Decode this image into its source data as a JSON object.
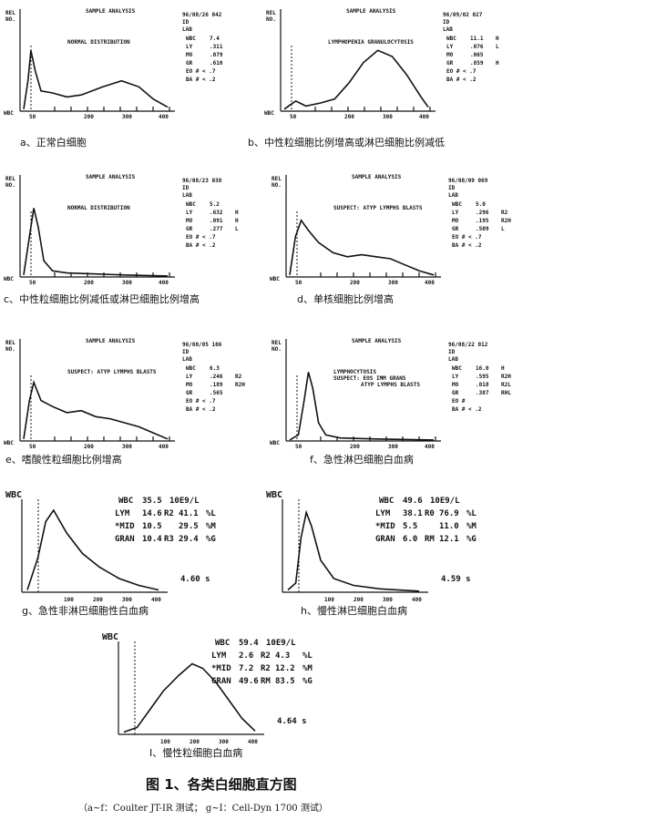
{
  "panels_a_f": [
    {
      "id": "a",
      "header": "SAMPLE ANALYSIS",
      "title": "NORMAL DISTRIBUTION",
      "date": "96/08/26 042",
      "rows": [
        [
          "WBC",
          "7.4",
          ""
        ],
        [
          "LY",
          ".311",
          ""
        ],
        [
          "MO",
          ".079",
          ""
        ],
        [
          "GR",
          ".610",
          ""
        ],
        [
          "EO # < .7",
          "",
          " "
        ],
        [
          "BA # < .2",
          "",
          " "
        ]
      ],
      "caption": "a、正常白细胞",
      "curve": [
        [
          0,
          2
        ],
        [
          0.03,
          30
        ],
        [
          0.05,
          60
        ],
        [
          0.08,
          40
        ],
        [
          0.12,
          20
        ],
        [
          0.2,
          18
        ],
        [
          0.3,
          14
        ],
        [
          0.4,
          16
        ],
        [
          0.55,
          24
        ],
        [
          0.68,
          30
        ],
        [
          0.8,
          24
        ],
        [
          0.9,
          12
        ],
        [
          1,
          4
        ]
      ]
    },
    {
      "id": "b",
      "header": "SAMPLE ANALYSIS",
      "title": "LYMPHOPENIA GRANULOCYTOSIS",
      "date": "96/09/02 027",
      "rows": [
        [
          "WBC",
          "11.1",
          "H"
        ],
        [
          "LY",
          ".076",
          "L"
        ],
        [
          "MO",
          ".065",
          ""
        ],
        [
          "GR",
          ".859",
          "H"
        ],
        [
          "EO # < .7",
          "",
          ""
        ],
        [
          "BA # < .2",
          "",
          ""
        ]
      ],
      "caption": "b、中性粒细胞比例增高或淋巴细胞比例减低",
      "curve": [
        [
          0,
          2
        ],
        [
          0.04,
          6
        ],
        [
          0.08,
          10
        ],
        [
          0.15,
          5
        ],
        [
          0.25,
          8
        ],
        [
          0.35,
          12
        ],
        [
          0.45,
          28
        ],
        [
          0.55,
          48
        ],
        [
          0.65,
          60
        ],
        [
          0.75,
          54
        ],
        [
          0.85,
          36
        ],
        [
          0.95,
          14
        ],
        [
          1,
          4
        ]
      ]
    },
    {
      "id": "c",
      "header": "SAMPLE ANALYSIS",
      "title": "NORMAL DISTRIBUTION",
      "date": "96/08/23 038",
      "rows": [
        [
          "WBC",
          "5.2",
          ""
        ],
        [
          "LY",
          ".632",
          "H"
        ],
        [
          "MO",
          ".091",
          "H"
        ],
        [
          "GR",
          ".277",
          "L"
        ],
        [
          "EO # < .7",
          "",
          ""
        ],
        [
          "BA # < .2",
          "",
          ""
        ]
      ],
      "caption": "c、中性粒细胞比例减低或淋巴细胞比例增高",
      "curve": [
        [
          0,
          2
        ],
        [
          0.04,
          40
        ],
        [
          0.07,
          68
        ],
        [
          0.1,
          50
        ],
        [
          0.14,
          16
        ],
        [
          0.2,
          6
        ],
        [
          0.3,
          4
        ],
        [
          0.5,
          3
        ],
        [
          0.7,
          2
        ],
        [
          1,
          1
        ]
      ]
    },
    {
      "id": "d",
      "header": "SAMPLE ANALYSIS",
      "title": "SUSPECT: ATYP LYMPHS BLASTS",
      "date": "96/08/09 069",
      "rows": [
        [
          "WBC",
          "5.0",
          ""
        ],
        [
          "LY",
          ".296",
          "R2"
        ],
        [
          "MO",
          ".195",
          "R2H"
        ],
        [
          "GR",
          ".509",
          "L"
        ],
        [
          "EO # < .7",
          "",
          ""
        ],
        [
          "BA # < .2",
          "",
          ""
        ]
      ],
      "caption": "d、单核细胞比例增高",
      "curve": [
        [
          0,
          2
        ],
        [
          0.04,
          40
        ],
        [
          0.08,
          56
        ],
        [
          0.13,
          46
        ],
        [
          0.2,
          34
        ],
        [
          0.3,
          24
        ],
        [
          0.4,
          20
        ],
        [
          0.5,
          22
        ],
        [
          0.6,
          20
        ],
        [
          0.7,
          18
        ],
        [
          0.8,
          12
        ],
        [
          0.9,
          6
        ],
        [
          1,
          2
        ]
      ]
    },
    {
      "id": "e",
      "header": "SAMPLE ANALYSIS",
      "title": "SUSPECT: ATYP LYMPHS BLASTS",
      "date": "96/08/05 106",
      "rows": [
        [
          "WBC",
          "6.3",
          ""
        ],
        [
          "LY",
          ".246",
          "R2"
        ],
        [
          "MO",
          ".189",
          "R2H"
        ],
        [
          "GR",
          ".565",
          ""
        ],
        [
          "EO # < .7",
          "",
          ""
        ],
        [
          "BA # < .2",
          "",
          ""
        ]
      ],
      "caption": "e、嗜酸性粒细胞比例增高",
      "curve": [
        [
          0,
          2
        ],
        [
          0.04,
          40
        ],
        [
          0.07,
          58
        ],
        [
          0.12,
          40
        ],
        [
          0.2,
          34
        ],
        [
          0.3,
          28
        ],
        [
          0.4,
          30
        ],
        [
          0.5,
          24
        ],
        [
          0.6,
          22
        ],
        [
          0.7,
          18
        ],
        [
          0.8,
          14
        ],
        [
          0.9,
          8
        ],
        [
          1,
          2
        ]
      ]
    },
    {
      "id": "f",
      "header": "SAMPLE ANALYSIS",
      "title": "LYMPHOCYTOSIS",
      "title2": "SUSPECT: EOS IMM GRANS",
      "title3": "ATYP LYMPHS BLASTS",
      "date": "96/08/22 012",
      "rows": [
        [
          "WBC",
          "16.0",
          "H"
        ],
        [
          "LY",
          ".595",
          "R2H"
        ],
        [
          "MO",
          ".018",
          "R2L"
        ],
        [
          "GR",
          ".387",
          "RHL"
        ],
        [
          "EO #",
          "",
          ""
        ],
        [
          "BA # < .2",
          "",
          ""
        ]
      ],
      "caption": "f、急性淋巴细胞白血病",
      "curve": [
        [
          0,
          1
        ],
        [
          0.06,
          6
        ],
        [
          0.1,
          40
        ],
        [
          0.13,
          68
        ],
        [
          0.16,
          52
        ],
        [
          0.2,
          18
        ],
        [
          0.25,
          6
        ],
        [
          0.35,
          3
        ],
        [
          0.6,
          2
        ],
        [
          1,
          1
        ]
      ]
    }
  ],
  "panels_g_i": [
    {
      "id": "g",
      "label": "WBC",
      "wbc": "35.5",
      "unit": "10E9/L",
      "rows": [
        [
          "LYM",
          "14.6",
          "R2",
          "41.1",
          "%L"
        ],
        [
          "*MID",
          "10.5",
          "",
          "29.5",
          "%M"
        ],
        [
          "GRAN",
          "10.4",
          "R3",
          "29.4",
          "%G"
        ]
      ],
      "time": "4.60 s",
      "caption": "g、急性非淋巴细胞性白血病",
      "curve": [
        [
          0,
          2
        ],
        [
          0.08,
          30
        ],
        [
          0.14,
          62
        ],
        [
          0.2,
          72
        ],
        [
          0.3,
          52
        ],
        [
          0.42,
          34
        ],
        [
          0.55,
          22
        ],
        [
          0.7,
          12
        ],
        [
          0.85,
          6
        ],
        [
          1,
          2
        ]
      ]
    },
    {
      "id": "h",
      "label": "WBC",
      "wbc": "49.6",
      "unit": "10E9/L",
      "rows": [
        [
          "LYM",
          "38.1",
          "R0",
          "76.9",
          "%L"
        ],
        [
          "*MID",
          "5.5",
          "",
          "11.0",
          "%M"
        ],
        [
          "GRAN",
          "6.0",
          "RM",
          "12.1",
          "%G"
        ]
      ],
      "time": "4.59 s",
      "caption": "h、慢性淋巴细胞白血病",
      "curve": [
        [
          0,
          2
        ],
        [
          0.06,
          8
        ],
        [
          0.1,
          48
        ],
        [
          0.14,
          70
        ],
        [
          0.18,
          58
        ],
        [
          0.25,
          28
        ],
        [
          0.35,
          12
        ],
        [
          0.5,
          6
        ],
        [
          0.7,
          3
        ],
        [
          1,
          1
        ]
      ]
    },
    {
      "id": "i",
      "label": "WBC",
      "wbc": "59.4",
      "unit": "10E9/L",
      "rows": [
        [
          "LYM",
          "2.6",
          "R2",
          "4.3",
          "%L"
        ],
        [
          "*MID",
          "7.2",
          "R2",
          "12.2",
          "%M"
        ],
        [
          "GRAN",
          "49.6",
          "RM",
          "83.5",
          "%G"
        ]
      ],
      "time": "4.64 s",
      "caption": "I、慢性粒细胞白血病",
      "curve": [
        [
          0,
          2
        ],
        [
          0.1,
          6
        ],
        [
          0.2,
          22
        ],
        [
          0.3,
          38
        ],
        [
          0.42,
          52
        ],
        [
          0.52,
          62
        ],
        [
          0.6,
          58
        ],
        [
          0.7,
          46
        ],
        [
          0.8,
          30
        ],
        [
          0.9,
          14
        ],
        [
          1,
          3
        ]
      ]
    }
  ],
  "figure_title": "图 1、各类白细胞直方图",
  "figure_subtitle": "（a~f：Coulter JT-IR 测试；    g~I：Cell-Dyn 1700 测试）"
}
